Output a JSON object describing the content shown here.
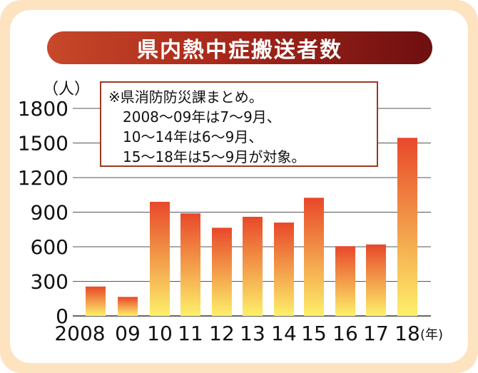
{
  "title": "県内熱中症搬送者数",
  "unit_y": "（人）",
  "unit_x": "(年)",
  "note_lines": [
    "※県消防防災課まとめ。",
    "　2008～09年は7～9月、",
    "　10～14年は6～9月、",
    "　15～18年は5～9月が対象。"
  ],
  "colors": {
    "bar_top": "#e8482a",
    "bar_bottom": "#fdf06a",
    "title_bg_left": "#c8482a",
    "title_bg_right": "#6e0f10",
    "frame": "#fde3bf",
    "note_border": "#9a3a22",
    "grid": "#555555"
  },
  "chart_data": {
    "type": "bar",
    "title": "県内熱中症搬送者数",
    "categories": [
      "2008",
      "09",
      "10",
      "11",
      "12",
      "13",
      "14",
      "15",
      "16",
      "17",
      "18"
    ],
    "values": [
      255,
      165,
      990,
      890,
      765,
      860,
      810,
      1025,
      605,
      620,
      1545
    ],
    "yticks": [
      0,
      300,
      600,
      900,
      1200,
      1500,
      1800
    ],
    "ylim": [
      0,
      1800
    ],
    "ylabel": "（人）",
    "xlabel": "(年)",
    "grid": true
  }
}
